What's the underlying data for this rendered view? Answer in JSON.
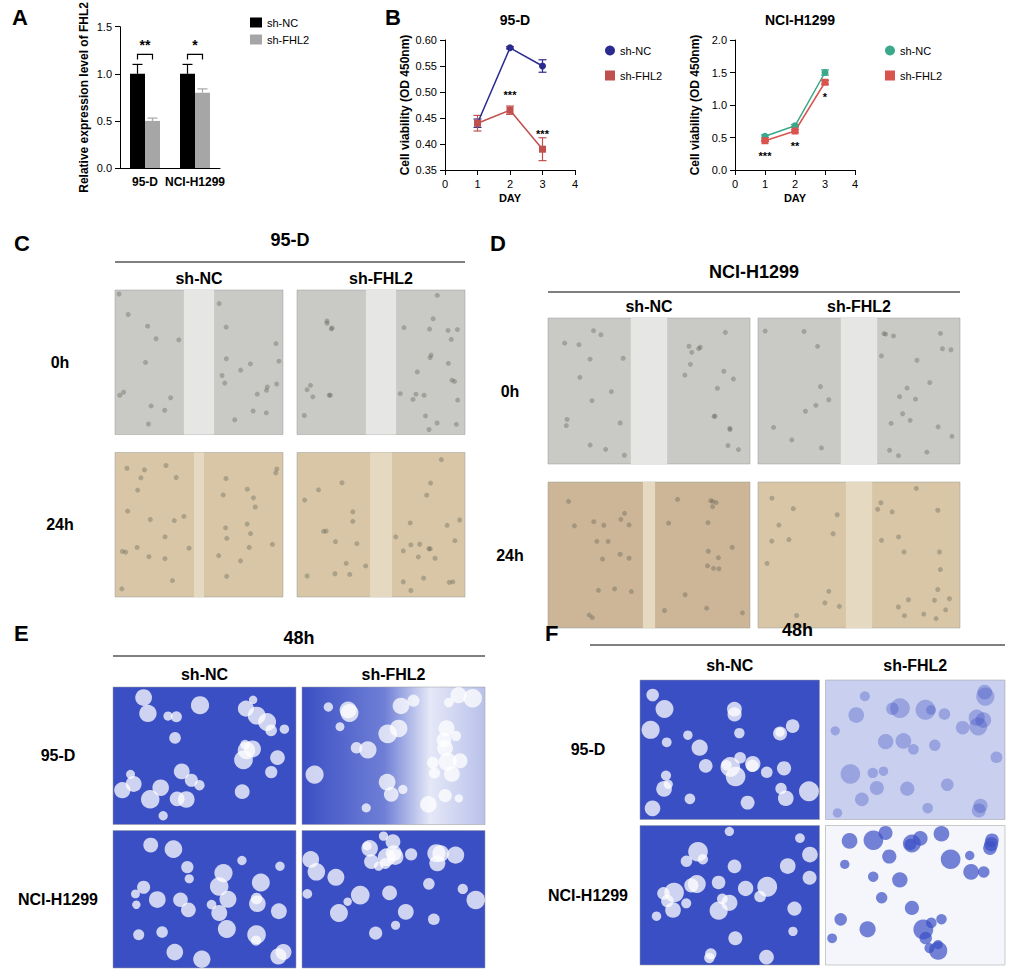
{
  "chart_data": [
    {
      "panel": "A",
      "type": "bar",
      "categories": [
        "95-D",
        "NCI-H1299"
      ],
      "series": [
        {
          "name": "sh-NC",
          "color": "#000000",
          "values": [
            1.0,
            1.0
          ],
          "errors": [
            0.1,
            0.1
          ]
        },
        {
          "name": "sh-FHL2",
          "color": "#a6a6a6",
          "values": [
            0.5,
            0.8
          ],
          "errors": [
            0.03,
            0.04
          ]
        }
      ],
      "y_label": "Relative expression level of FHL2",
      "ylim": [
        0,
        1.5
      ],
      "yticks": [
        {
          "value": 0,
          "label": "0.0"
        },
        0.5,
        {
          "value": 1,
          "label": "1.0"
        },
        1.5
      ],
      "annotations": [
        {
          "category": "95-D",
          "label": "**"
        },
        {
          "category": "NCI-H1299",
          "label": "*"
        }
      ],
      "legend": "right",
      "grid": false
    },
    {
      "panel": "B",
      "type": "line",
      "title": "95-D",
      "x_label": "DAY",
      "y_label": "Cell viability (OD 450nm)",
      "x": [
        1,
        2,
        3
      ],
      "xlim": [
        0,
        4
      ],
      "xticks": [
        0,
        1,
        2,
        3,
        4
      ],
      "ylim": [
        0.35,
        0.6
      ],
      "yticks": [
        0.35,
        {
          "value": 0.4,
          "label": "0.40"
        },
        0.45,
        {
          "value": 0.5,
          "label": "0.50"
        },
        0.55,
        {
          "value": 0.6,
          "label": "0.60"
        }
      ],
      "series": [
        {
          "name": "sh-NC",
          "color": "#2b2b8f",
          "marker": "circle",
          "values": [
            0.44,
            0.585,
            0.55
          ],
          "errors": [
            0.008,
            0.002,
            0.012
          ]
        },
        {
          "name": "sh-FHL2",
          "color": "#c0504d",
          "marker": "square",
          "values": [
            0.44,
            0.465,
            0.39
          ],
          "errors": [
            0.015,
            0.008,
            0.022
          ],
          "significance": [
            null,
            "***",
            "***"
          ]
        }
      ],
      "legend": "right",
      "grid": false
    },
    {
      "type": "line",
      "title": "NCI-H1299",
      "x_label": "DAY",
      "y_label": "Cell viability (OD 450nm)",
      "x": [
        1,
        2,
        3
      ],
      "xlim": [
        0,
        4
      ],
      "xticks": [
        0,
        1,
        2,
        3,
        4
      ],
      "ylim": [
        0,
        2
      ],
      "yticks": [
        {
          "value": 0,
          "label": "0.0"
        },
        0.5,
        {
          "value": 1,
          "label": "1.0"
        },
        1.5,
        {
          "value": 2,
          "label": "2.0"
        }
      ],
      "series": [
        {
          "name": "sh-NC",
          "color": "#3aa88a",
          "marker": "circle",
          "values": [
            0.52,
            0.68,
            1.5
          ],
          "errors": [
            0.02,
            0.02,
            0.04
          ]
        },
        {
          "name": "sh-FHL2",
          "color": "#d9534f",
          "marker": "square",
          "values": [
            0.45,
            0.6,
            1.35
          ],
          "errors": [
            0.01,
            0.02,
            0.03
          ],
          "significance": [
            "***",
            "**",
            "*"
          ]
        }
      ],
      "legend": "right",
      "grid": false
    }
  ],
  "image_panels": [
    {
      "panel": "C",
      "title": "95-D",
      "columns": [
        "sh-NC",
        "sh-FHL2"
      ],
      "rows": [
        "0h",
        "24h"
      ]
    },
    {
      "panel": "D",
      "title": "NCI-H1299",
      "columns": [
        "sh-NC",
        "sh-FHL2"
      ],
      "rows": [
        "0h",
        "24h"
      ]
    },
    {
      "panel": "E",
      "title": "48h",
      "columns": [
        "sh-NC",
        "sh-FHL2"
      ],
      "rows": [
        "95-D",
        "NCI-H1299"
      ]
    },
    {
      "panel": "F",
      "title": "48h",
      "columns": [
        "sh-NC",
        "sh-FHL2"
      ],
      "rows": [
        "95-D",
        "NCI-H1299"
      ]
    }
  ]
}
